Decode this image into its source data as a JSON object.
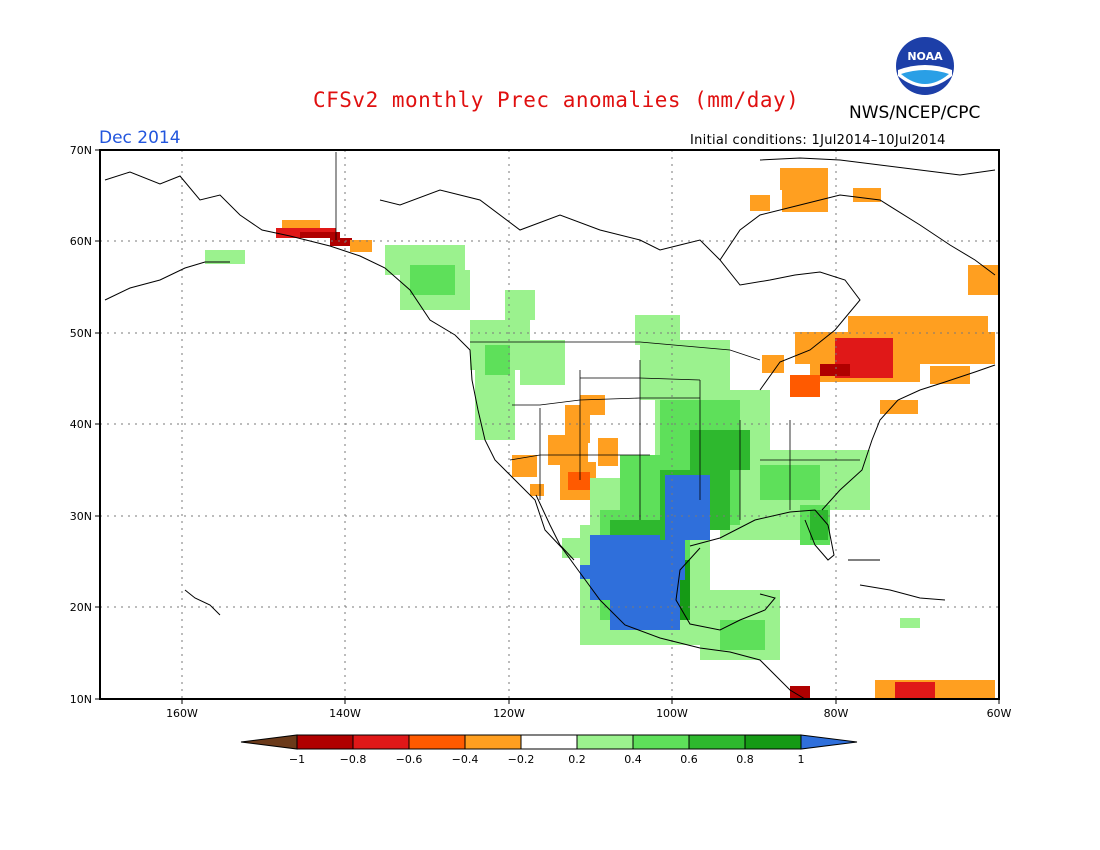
{
  "header": {
    "title": "CFSv2 monthly Prec anomalies (mm/day)",
    "valid_month": "Dec 2014",
    "agency": "NWS/NCEP/CPC",
    "initial_conditions": "Initial conditions: 1Jul2014–10Jul2014",
    "logo_text": "NOAA"
  },
  "map": {
    "lat_labels": [
      "70N",
      "60N",
      "50N",
      "40N",
      "30N",
      "20N",
      "10N"
    ],
    "lon_labels": [
      "160W",
      "140W",
      "120W",
      "100W",
      "80W",
      "60W"
    ],
    "lat_range": [
      10,
      70
    ],
    "lon_range": [
      -170,
      -60
    ]
  },
  "colorbar": {
    "labels": [
      "−1",
      "−0.8",
      "−0.6",
      "−0.4",
      "−0.2",
      "0.2",
      "0.4",
      "0.6",
      "0.8",
      "1"
    ],
    "colors": [
      "#6b3a1a",
      "#b00000",
      "#e01818",
      "#ff5a00",
      "#ff9f20",
      "#ffffff",
      "#9bf28e",
      "#5ee05a",
      "#2eb82e",
      "#159a15",
      "#2f6fdb"
    ]
  }
}
